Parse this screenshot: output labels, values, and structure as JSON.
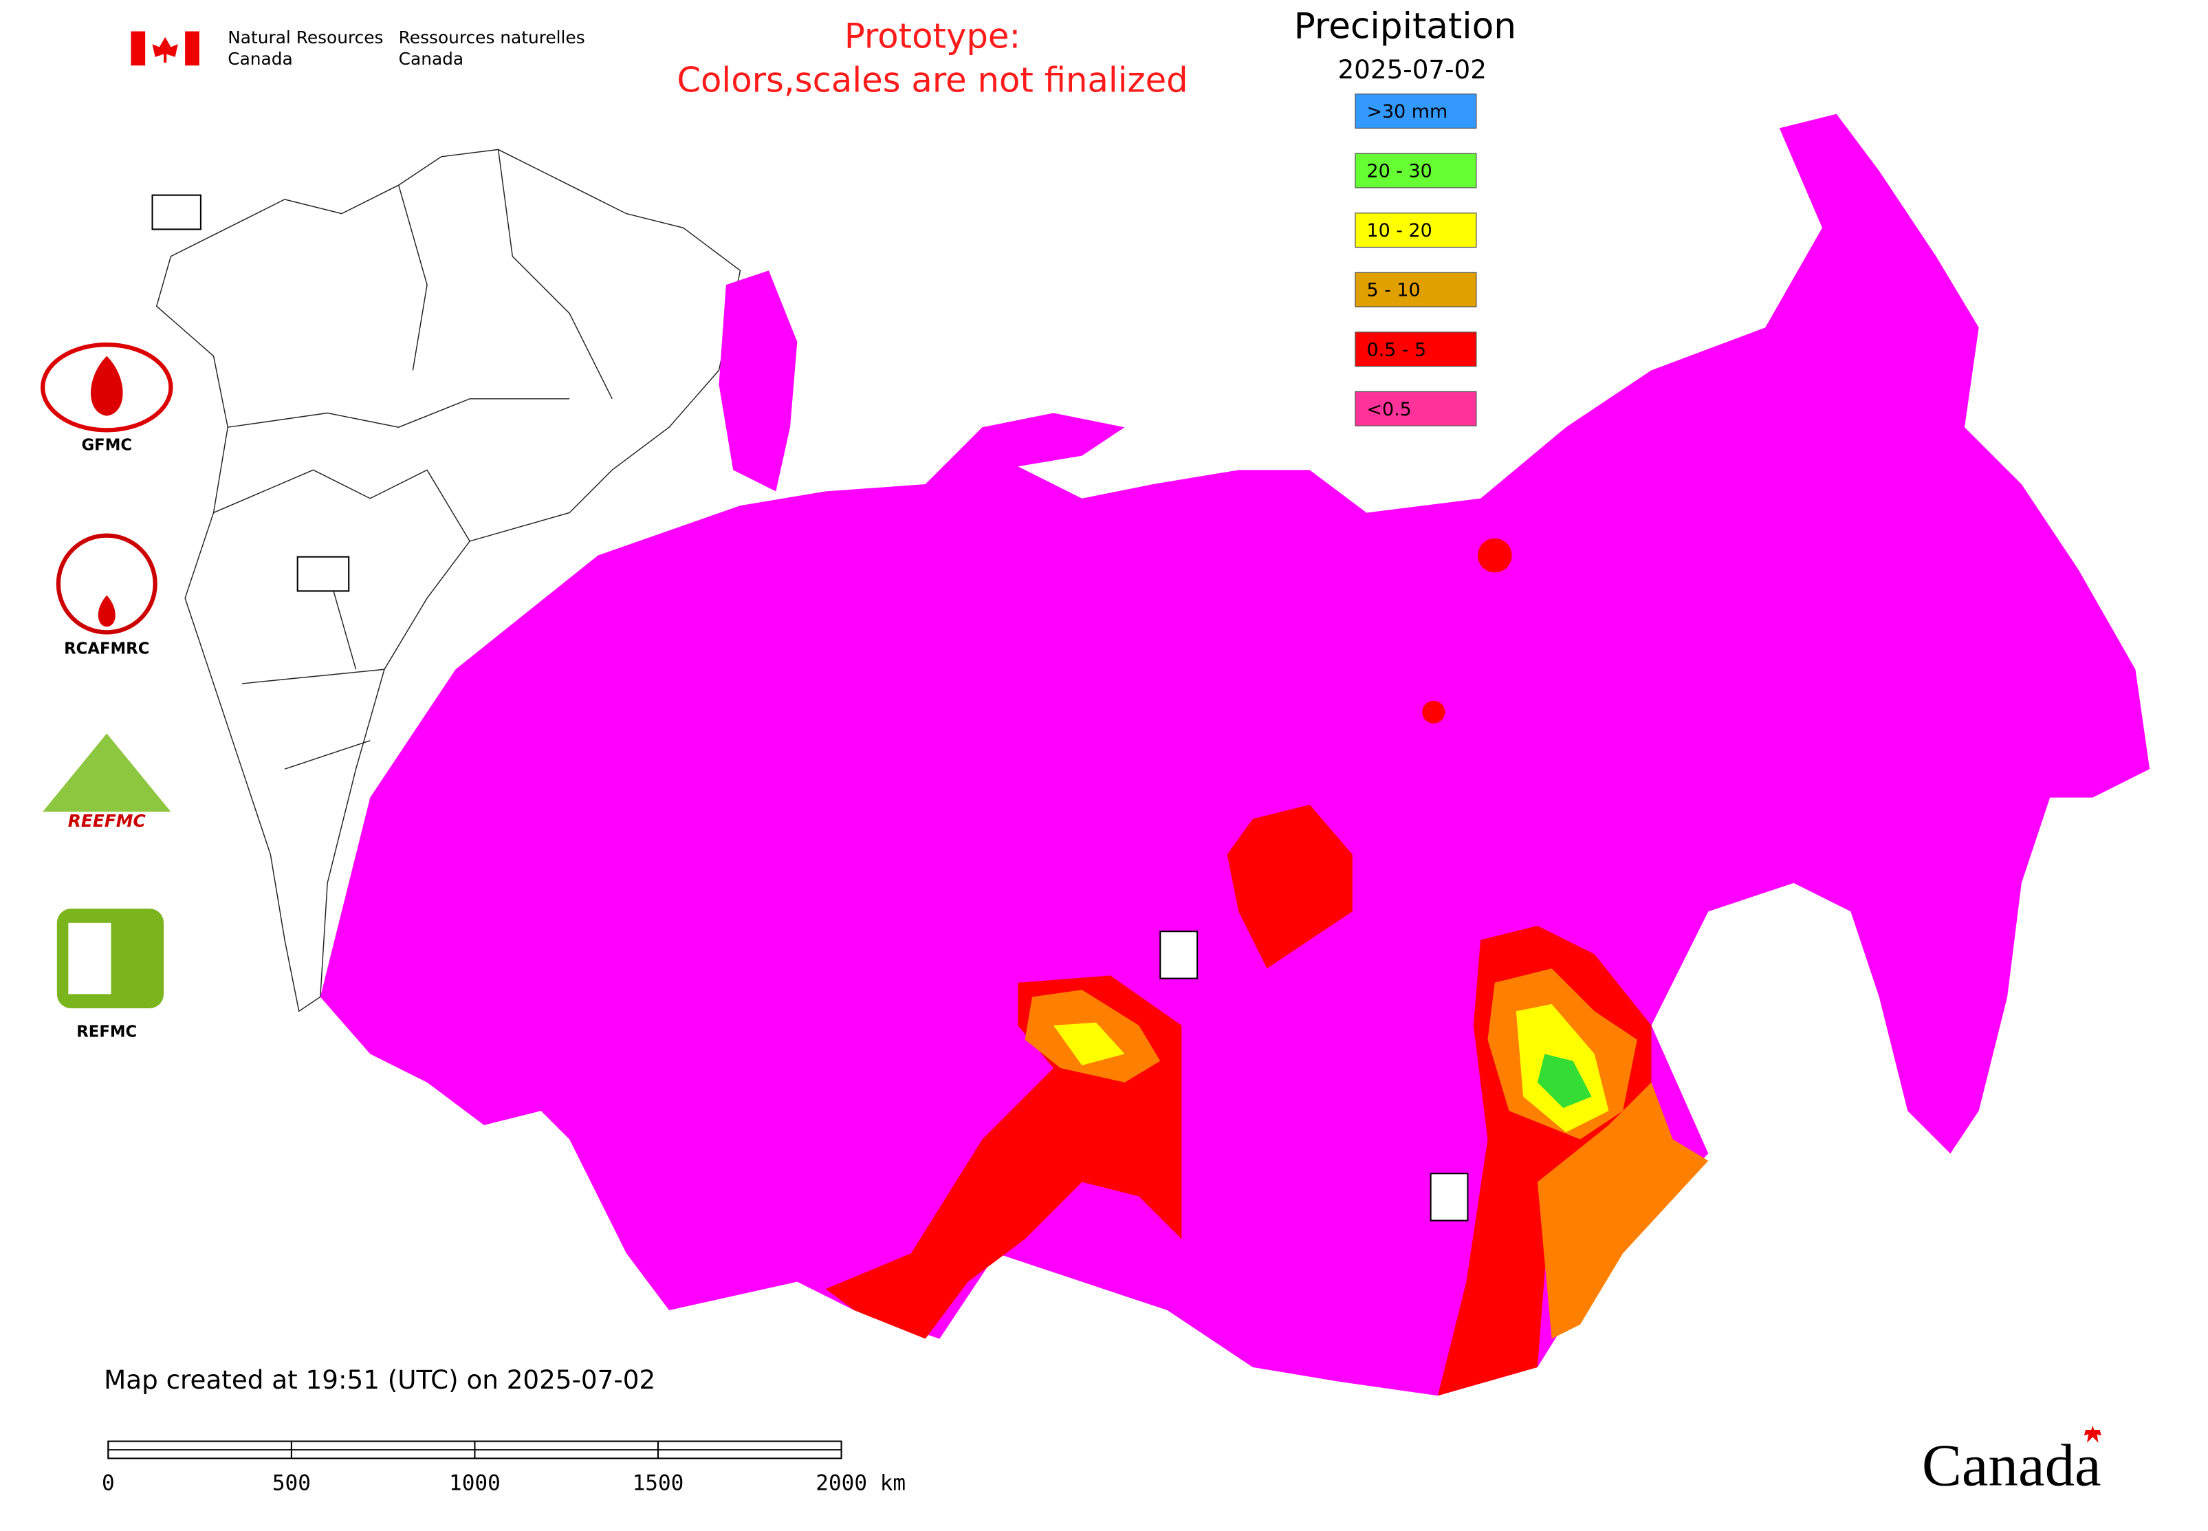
{
  "header": {
    "agency_en": [
      "Natural Resources",
      "Canada"
    ],
    "agency_fr": [
      "Ressources naturelles",
      "Canada"
    ]
  },
  "notice": [
    "Prototype:",
    "Colors,scales are not finalized"
  ],
  "legend": {
    "title": "Precipitation",
    "date": "2025-07-02",
    "items": [
      {
        "label": ">30 mm",
        "color": "#3399ff"
      },
      {
        "label": "20 - 30",
        "color": "#66ff33"
      },
      {
        "label": "10 - 20",
        "color": "#ffff00"
      },
      {
        "label": "5 - 10",
        "color": "#e0a000"
      },
      {
        "label": "0.5 - 5",
        "color": "#ff0000"
      },
      {
        "label": "<0.5",
        "color": "#ff3399"
      }
    ]
  },
  "logos": [
    "GFMC",
    "RCAFMRC",
    "REEFMC",
    "REFMC"
  ],
  "footer": {
    "created": "Map created at 19:51 (UTC) on 2025-07-02",
    "scale_ticks": [
      0,
      500,
      1000,
      1500,
      {
        "value": 2000,
        "label": "2000 km"
      }
    ],
    "wordmark": "Canada"
  }
}
